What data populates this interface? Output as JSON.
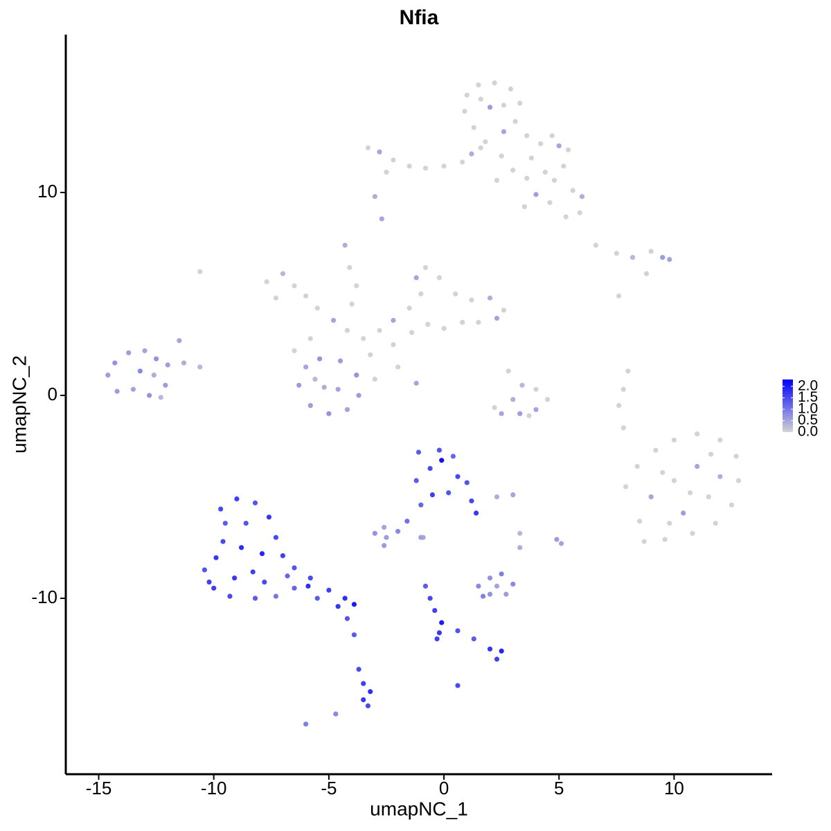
{
  "chart_data": {
    "type": "scatter",
    "title": "Nfia",
    "x_label": "umapNC_1",
    "y_label": "umapNC_2",
    "xlim": [
      -16.43,
      14.26
    ],
    "ylim": [
      -18.67,
      17.78
    ],
    "xticks": [
      -15,
      -10,
      -5,
      0,
      5,
      10
    ],
    "yticks": [
      -10,
      0,
      10
    ],
    "color_low": "#d3d3d3",
    "color_high": "#0000ff",
    "color_lim": [
      0,
      2.3
    ],
    "color_ticks": [
      {
        "value": 0,
        "label": "0.0"
      },
      {
        "value": 0.5,
        "label": "0.5"
      },
      {
        "value": 1,
        "label": "1.0"
      },
      {
        "value": 1.5,
        "label": "1.5"
      },
      {
        "value": 2,
        "label": "2.0"
      }
    ],
    "points": [
      [
        -3.3,
        12.2,
        0
      ],
      [
        -2.8,
        12.0,
        0.5
      ],
      [
        -2.2,
        11.6,
        0
      ],
      [
        -1.5,
        11.3,
        0
      ],
      [
        -0.8,
        11.2,
        0
      ],
      [
        0,
        11.3,
        0
      ],
      [
        0.8,
        11.5,
        0
      ],
      [
        1.2,
        11.9,
        0.4
      ],
      [
        1.8,
        12.5,
        0
      ],
      [
        1.3,
        13.2,
        0
      ],
      [
        0.9,
        14.0,
        0
      ],
      [
        1.0,
        14.8,
        0
      ],
      [
        1.5,
        15.3,
        0
      ],
      [
        2.2,
        15.4,
        0
      ],
      [
        2.9,
        15.1,
        0
      ],
      [
        3.3,
        14.4,
        0
      ],
      [
        3.1,
        13.5,
        0
      ],
      [
        2.6,
        13.0,
        0.5
      ],
      [
        2.0,
        14.2,
        0.6
      ],
      [
        1.6,
        14.6,
        0
      ],
      [
        2.6,
        14.3,
        0
      ],
      [
        3.6,
        12.8,
        0
      ],
      [
        4.2,
        12.4,
        0
      ],
      [
        5.0,
        12.3,
        0.5
      ],
      [
        5.4,
        12.1,
        0
      ],
      [
        5.2,
        11.3,
        0
      ],
      [
        4.8,
        10.6,
        0
      ],
      [
        5.6,
        10.1,
        0
      ],
      [
        6.0,
        9.8,
        0.4
      ],
      [
        5.9,
        9.0,
        0
      ],
      [
        5.3,
        8.8,
        0
      ],
      [
        4.6,
        9.5,
        0
      ],
      [
        4.0,
        9.9,
        0.6
      ],
      [
        3.6,
        10.7,
        0
      ],
      [
        3.0,
        11.1,
        0
      ],
      [
        2.5,
        11.8,
        0
      ],
      [
        3.8,
        11.7,
        0
      ],
      [
        4.4,
        11.0,
        0
      ],
      [
        2.3,
        10.6,
        0
      ],
      [
        -2.5,
        11.0,
        0
      ],
      [
        -3.0,
        9.8,
        0.4
      ],
      [
        -2.7,
        8.7,
        0.5
      ],
      [
        1.6,
        12.2,
        0
      ],
      [
        4.7,
        12.8,
        0
      ],
      [
        3.5,
        9.3,
        0
      ],
      [
        -7.7,
        5.6,
        0
      ],
      [
        -7.0,
        6.0,
        0.3
      ],
      [
        -6.5,
        5.4,
        0
      ],
      [
        -6.0,
        4.9,
        0
      ],
      [
        -5.5,
        4.3,
        0
      ],
      [
        -4.8,
        3.7,
        0.5
      ],
      [
        -4.2,
        3.2,
        0
      ],
      [
        -3.5,
        2.8,
        0
      ],
      [
        -2.8,
        3.2,
        0
      ],
      [
        -2.2,
        3.7,
        0.5
      ],
      [
        -1.5,
        4.3,
        0
      ],
      [
        -1.0,
        5.0,
        0
      ],
      [
        -1.2,
        5.8,
        0.5
      ],
      [
        -0.8,
        6.3,
        0
      ],
      [
        -0.2,
        5.8,
        0
      ],
      [
        0.5,
        5.0,
        0
      ],
      [
        1.2,
        4.7,
        0
      ],
      [
        2.0,
        4.8,
        0.4
      ],
      [
        2.6,
        4.2,
        0
      ],
      [
        2.3,
        3.8,
        0.5
      ],
      [
        1.5,
        3.6,
        0
      ],
      [
        0.8,
        3.6,
        0
      ],
      [
        0,
        3.3,
        0
      ],
      [
        -0.7,
        3.5,
        0
      ],
      [
        -1.4,
        3.1,
        0
      ],
      [
        -2.2,
        2.5,
        0
      ],
      [
        -3.2,
        2.0,
        0
      ],
      [
        -4.0,
        4.5,
        0
      ],
      [
        -4.3,
        7.4,
        0.4
      ],
      [
        -4.1,
        6.3,
        0
      ],
      [
        -3.8,
        5.4,
        0
      ],
      [
        -5.8,
        2.8,
        0
      ],
      [
        -6.5,
        2.2,
        0
      ],
      [
        -7.3,
        4.8,
        0
      ],
      [
        -3.0,
        0.8,
        0
      ],
      [
        -1.2,
        0.6,
        0.5
      ],
      [
        -2.0,
        1.4,
        0
      ],
      [
        -6.3,
        0.5,
        0.6
      ],
      [
        -6.0,
        1.4,
        0.5
      ],
      [
        -5.4,
        1.8,
        0.7
      ],
      [
        -4.5,
        1.7,
        0.6
      ],
      [
        -3.8,
        1.0,
        0.7
      ],
      [
        -3.7,
        0.0,
        0.6
      ],
      [
        -4.2,
        -0.7,
        0.5
      ],
      [
        -5.0,
        -0.9,
        0.7
      ],
      [
        -5.8,
        -0.5,
        0.6
      ],
      [
        -5.2,
        0.4,
        0.4
      ],
      [
        -4.6,
        0.3,
        0.5
      ],
      [
        -5.6,
        0.8,
        0.3
      ],
      [
        -14.6,
        1.0,
        0.6
      ],
      [
        -14.3,
        1.6,
        0.7
      ],
      [
        -13.7,
        2.1,
        0.6
      ],
      [
        -13.0,
        2.2,
        0.5
      ],
      [
        -12.5,
        1.8,
        0.7
      ],
      [
        -12.0,
        1.5,
        0.6
      ],
      [
        -11.5,
        2.7,
        0.5
      ],
      [
        -11.3,
        1.6,
        0.4
      ],
      [
        -10.6,
        1.4,
        0.3
      ],
      [
        -12.1,
        0.5,
        0.6
      ],
      [
        -12.8,
        0.0,
        0.7
      ],
      [
        -13.5,
        0.3,
        0.5
      ],
      [
        -14.2,
        0.2,
        0.6
      ],
      [
        -13.2,
        1.2,
        0.8
      ],
      [
        -12.6,
        1.0,
        0.4
      ],
      [
        -12.3,
        -0.1,
        0.3
      ],
      [
        -10.6,
        6.1,
        0
      ],
      [
        2.8,
        1.2,
        0
      ],
      [
        3.4,
        0.5,
        0.3
      ],
      [
        3.0,
        -0.2,
        0.4
      ],
      [
        2.2,
        -0.6,
        0
      ],
      [
        2.5,
        -0.9,
        0.5
      ],
      [
        3.3,
        -0.9,
        0.6
      ],
      [
        4.0,
        -0.7,
        0.5
      ],
      [
        4.5,
        -0.2,
        0
      ],
      [
        4.0,
        0.3,
        0
      ],
      [
        3.7,
        -1.0,
        0
      ],
      [
        6.6,
        7.4,
        0
      ],
      [
        7.5,
        7.0,
        0
      ],
      [
        8.2,
        6.8,
        0.3
      ],
      [
        9.0,
        7.1,
        0
      ],
      [
        9.5,
        6.8,
        0.6
      ],
      [
        9.8,
        6.7,
        0.5
      ],
      [
        8.8,
        6.0,
        0
      ],
      [
        7.6,
        4.9,
        0
      ],
      [
        8.0,
        1.2,
        0
      ],
      [
        7.8,
        0.3,
        0
      ],
      [
        7.6,
        -0.5,
        0
      ],
      [
        7.8,
        -1.6,
        0
      ],
      [
        7.9,
        -4.5,
        0
      ],
      [
        8.4,
        -3.5,
        0
      ],
      [
        9.2,
        -2.7,
        0
      ],
      [
        10.0,
        -2.2,
        0
      ],
      [
        11.0,
        -1.9,
        0
      ],
      [
        12.0,
        -2.2,
        0
      ],
      [
        12.7,
        -3.0,
        0
      ],
      [
        12.8,
        -4.2,
        0
      ],
      [
        12.5,
        -5.4,
        0
      ],
      [
        11.8,
        -6.3,
        0
      ],
      [
        10.8,
        -6.8,
        0
      ],
      [
        9.6,
        -7.1,
        0
      ],
      [
        8.7,
        -7.2,
        0
      ],
      [
        8.5,
        -6.2,
        0
      ],
      [
        9.0,
        -5.0,
        0.5
      ],
      [
        10.0,
        -4.2,
        0
      ],
      [
        11.0,
        -3.5,
        0.5
      ],
      [
        11.5,
        -5.0,
        0
      ],
      [
        10.4,
        -5.8,
        0.6
      ],
      [
        9.5,
        -3.8,
        0
      ],
      [
        12.0,
        -4.0,
        0.4
      ],
      [
        10.7,
        -4.8,
        0
      ],
      [
        9.8,
        -6.3,
        0
      ],
      [
        11.6,
        -2.9,
        0
      ],
      [
        -9.7,
        -5.6,
        1.5
      ],
      [
        -9.0,
        -5.1,
        1.6
      ],
      [
        -8.2,
        -5.3,
        1.4
      ],
      [
        -7.6,
        -6.0,
        1.7
      ],
      [
        -7.3,
        -7.0,
        1.5
      ],
      [
        -7.0,
        -7.9,
        1.6
      ],
      [
        -6.5,
        -8.5,
        1.4
      ],
      [
        -5.8,
        -9.0,
        1.5
      ],
      [
        -5.0,
        -9.6,
        1.6
      ],
      [
        -4.3,
        -10.0,
        1.8
      ],
      [
        -3.9,
        -10.3,
        2.0
      ],
      [
        -4.6,
        -10.4,
        1.7
      ],
      [
        -5.5,
        -10.0,
        1.3
      ],
      [
        -6.5,
        -9.5,
        1.2
      ],
      [
        -7.3,
        -9.9,
        1.0
      ],
      [
        -8.2,
        -10.0,
        1.3
      ],
      [
        -9.3,
        -9.9,
        1.5
      ],
      [
        -10.0,
        -9.5,
        1.6
      ],
      [
        -10.4,
        -8.6,
        1.4
      ],
      [
        -9.9,
        -8.0,
        1.7
      ],
      [
        -9.6,
        -7.2,
        1.5
      ],
      [
        -8.8,
        -7.5,
        1.8
      ],
      [
        -8.3,
        -8.7,
        1.6
      ],
      [
        -7.8,
        -9.2,
        1.5
      ],
      [
        -9.1,
        -9.0,
        1.7
      ],
      [
        -8.6,
        -6.3,
        1.4
      ],
      [
        -7.9,
        -7.8,
        1.9
      ],
      [
        -6.8,
        -8.9,
        1.2
      ],
      [
        -9.5,
        -6.3,
        1.3
      ],
      [
        -10.2,
        -9.2,
        1.6
      ],
      [
        -5.9,
        -9.4,
        1.8
      ],
      [
        -4.2,
        -11.0,
        1.4
      ],
      [
        -3.9,
        -11.8,
        1.3
      ],
      [
        -3.7,
        -13.5,
        1.5
      ],
      [
        -3.5,
        -14.2,
        1.6
      ],
      [
        -3.2,
        -14.6,
        1.8
      ],
      [
        -3.5,
        -15.0,
        1.7
      ],
      [
        -3.3,
        -15.3,
        1.5
      ],
      [
        -6.0,
        -16.2,
        0.9
      ],
      [
        -4.7,
        -15.7,
        0.8
      ],
      [
        -1.1,
        -2.8,
        1.3
      ],
      [
        -0.2,
        -2.7,
        1.4
      ],
      [
        0.4,
        -3.0,
        1.2
      ],
      [
        0.6,
        -4.0,
        1.5
      ],
      [
        0.2,
        -4.8,
        1.4
      ],
      [
        -0.5,
        -4.9,
        1.6
      ],
      [
        -1.2,
        -4.2,
        1.3
      ],
      [
        -0.6,
        -3.6,
        1.5
      ],
      [
        -0.1,
        -3.2,
        2.1
      ],
      [
        1.0,
        -4.3,
        1.4
      ],
      [
        1.2,
        -5.2,
        1.5
      ],
      [
        1.4,
        -5.8,
        1.7
      ],
      [
        -1.0,
        -5.4,
        1.2
      ],
      [
        -1.6,
        -6.2,
        1.1
      ],
      [
        -3.0,
        -6.8,
        0.7
      ],
      [
        -2.5,
        -7.0,
        0.6
      ],
      [
        -2.0,
        -6.7,
        0.8
      ],
      [
        -2.6,
        -6.5,
        0.5
      ],
      [
        -2.6,
        -7.4,
        0.6
      ],
      [
        -1.0,
        -7.0,
        0.6
      ],
      [
        2.3,
        -5.0,
        0.4
      ],
      [
        3.0,
        -4.9,
        0.5
      ],
      [
        4.9,
        -7.1,
        0.6
      ],
      [
        5.1,
        -7.3,
        0.5
      ],
      [
        3.3,
        -6.8,
        0.3
      ],
      [
        1.5,
        -9.4,
        0.8
      ],
      [
        2.0,
        -9.0,
        0.7
      ],
      [
        2.5,
        -8.8,
        0.9
      ],
      [
        3.0,
        -9.3,
        0.8
      ],
      [
        2.7,
        -9.8,
        0.6
      ],
      [
        2.0,
        -9.8,
        0.7
      ],
      [
        1.7,
        -9.9,
        0.9
      ],
      [
        2.3,
        -9.4,
        0.5
      ],
      [
        3.3,
        -7.5,
        0.4
      ],
      [
        -0.8,
        -9.4,
        1.3
      ],
      [
        -0.6,
        -10.0,
        1.5
      ],
      [
        -0.4,
        -10.6,
        1.6
      ],
      [
        -0.1,
        -11.2,
        2.0
      ],
      [
        -0.2,
        -11.7,
        1.7
      ],
      [
        0.6,
        -11.6,
        1.4
      ],
      [
        1.3,
        -12.0,
        1.3
      ],
      [
        2.0,
        -12.5,
        1.7
      ],
      [
        2.5,
        -12.6,
        1.9
      ],
      [
        2.3,
        -13.0,
        1.6
      ],
      [
        -0.3,
        -12.0,
        1.6
      ],
      [
        0.6,
        -14.3,
        1.5
      ],
      [
        -0.9,
        -7.0,
        0.5
      ]
    ]
  }
}
